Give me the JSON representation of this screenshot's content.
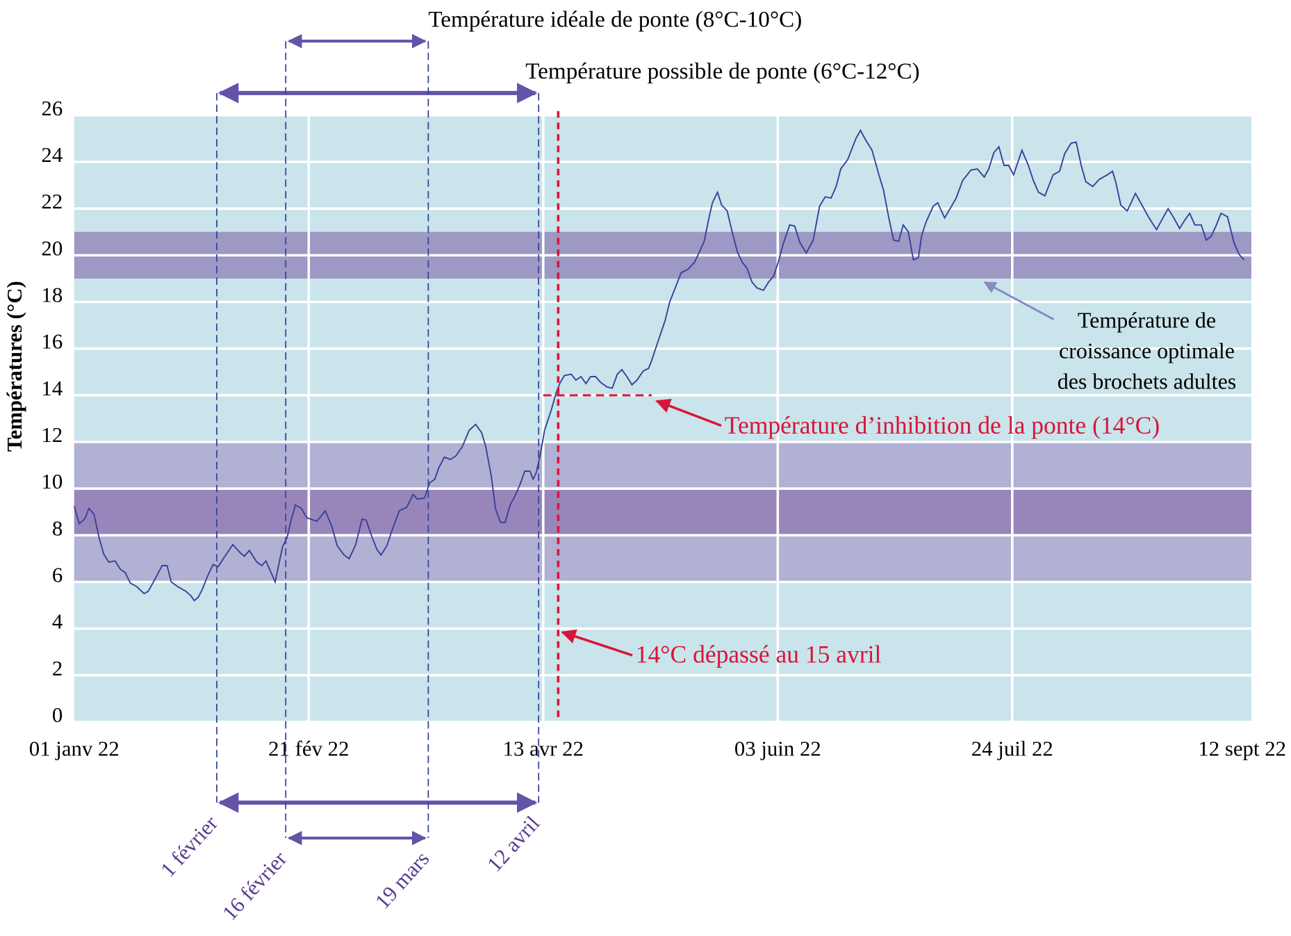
{
  "chart_data": {
    "type": "line",
    "y_label": "Températures (°C)",
    "ylim": [
      0,
      26
    ],
    "yticks": [
      0,
      2,
      4,
      6,
      8,
      10,
      12,
      14,
      16,
      18,
      20,
      22,
      24,
      26
    ],
    "xlim": [
      0,
      256
    ],
    "xticks": [
      {
        "value": 0,
        "label": "01 janv 22"
      },
      {
        "value": 51,
        "label": "21 fév 22"
      },
      {
        "value": 102,
        "label": "13 avr 22"
      },
      {
        "value": 153,
        "label": "03 juin 22"
      },
      {
        "value": 204,
        "label": "24 juil 22"
      },
      {
        "value": 254,
        "label": "12 sept 22"
      }
    ],
    "grid": true,
    "background": "#c9e4ea",
    "x": [
      0,
      1.1,
      2.3,
      3.2,
      4.3,
      5.4,
      6.4,
      7.5,
      8.9,
      10.0,
      11.1,
      12.2,
      13.6,
      15.2,
      16.1,
      17.5,
      19.1,
      20.2,
      21.1,
      22.5,
      24.3,
      25.4,
      26.1,
      27.0,
      27.9,
      29.0,
      30.2,
      31.3,
      32.6,
      34.5,
      36.1,
      37.0,
      38.1,
      39.7,
      40.8,
      41.7,
      43.7,
      45.3,
      46.3,
      47.1,
      48.1,
      49.4,
      50.6,
      52.8,
      54.6,
      56.0,
      57.2,
      58.7,
      59.8,
      61.2,
      62.6,
      63.5,
      64.8,
      65.8,
      66.7,
      68.0,
      69.2,
      70.7,
      72.3,
      73.7,
      74.6,
      76.2,
      77.3,
      78.4,
      79.3,
      80.5,
      81.8,
      83.0,
      84.4,
      85.9,
      87.3,
      88.6,
      89.5,
      90.7,
      91.6,
      92.7,
      93.7,
      94.8,
      95.9,
      97.0,
      98.0,
      99.1,
      99.8,
      100.5,
      101.4,
      102.3,
      103.8,
      104.8,
      105.7,
      106.6,
      108.1,
      109.1,
      110.2,
      111.3,
      112.3,
      113.4,
      114.5,
      115.9,
      117.0,
      118.1,
      119.1,
      120.2,
      121.3,
      122.4,
      123.8,
      124.9,
      125.6,
      126.7,
      128.5,
      129.5,
      131.0,
      132.0,
      133.5,
      134.9,
      136.0,
      137.0,
      138.1,
      138.8,
      139.9,
      140.8,
      142.0,
      143.1,
      144.2,
      145.3,
      146.3,
      147.4,
      148.5,
      149.9,
      151.0,
      152.1,
      153.1,
      154.2,
      155.6,
      156.7,
      157.8,
      159.2,
      160.7,
      162.1,
      163.3,
      164.6,
      165.7,
      166.7,
      168.2,
      170.0,
      171.0,
      172.1,
      173.5,
      175.0,
      176.0,
      177.1,
      178.2,
      179.3,
      180.3,
      181.4,
      182.5,
      183.6,
      184.3,
      185.3,
      186.8,
      187.8,
      189.3,
      190.5,
      191.8,
      193.2,
      195.0,
      196.4,
      197.9,
      198.9,
      200.0,
      201.1,
      202.2,
      203.2,
      204.3,
      206.1,
      207.5,
      208.6,
      209.7,
      211.1,
      212.9,
      214.3,
      215.4,
      216.8,
      217.9,
      219.0,
      220.0,
      221.5,
      222.9,
      224.7,
      225.8,
      226.5,
      227.6,
      229.0,
      230.8,
      232.2,
      233.6,
      234.4,
      235.4,
      236.9,
      237.9,
      239.0,
      240.4,
      241.5,
      242.6,
      243.7,
      245.1,
      246.2,
      247.2,
      248.3,
      249.4,
      250.8,
      252.2,
      253.3,
      254.4
    ],
    "series": [
      {
        "color": "#3a3f98",
        "values": [
          9.25,
          8.5,
          8.7,
          9.15,
          8.9,
          7.9,
          7.2,
          6.85,
          6.9,
          6.55,
          6.4,
          5.95,
          5.8,
          5.5,
          5.6,
          6.1,
          6.7,
          6.7,
          6.0,
          5.8,
          5.6,
          5.4,
          5.2,
          5.35,
          5.7,
          6.25,
          6.75,
          6.65,
          7.05,
          7.6,
          7.25,
          7.1,
          7.35,
          6.85,
          6.7,
          6.9,
          6.0,
          7.5,
          7.9,
          8.6,
          9.3,
          9.15,
          8.75,
          8.6,
          9.05,
          8.4,
          7.55,
          7.15,
          7.0,
          7.6,
          8.7,
          8.65,
          7.9,
          7.4,
          7.15,
          7.55,
          8.25,
          9.05,
          9.2,
          9.75,
          9.55,
          9.6,
          10.25,
          10.4,
          10.9,
          11.35,
          11.25,
          11.4,
          11.8,
          12.5,
          12.75,
          12.4,
          11.8,
          10.55,
          9.15,
          8.55,
          8.55,
          9.3,
          9.7,
          10.2,
          10.75,
          10.75,
          10.4,
          10.7,
          11.5,
          12.5,
          13.4,
          14.1,
          14.55,
          14.85,
          14.9,
          14.65,
          14.8,
          14.5,
          14.8,
          14.8,
          14.55,
          14.35,
          14.3,
          14.9,
          15.1,
          14.8,
          14.45,
          14.65,
          15.05,
          15.15,
          15.5,
          16.15,
          17.2,
          18.0,
          18.75,
          19.25,
          19.4,
          19.7,
          20.15,
          20.6,
          21.65,
          22.25,
          22.7,
          22.15,
          21.9,
          21.0,
          20.15,
          19.7,
          19.45,
          18.85,
          18.6,
          18.5,
          18.85,
          19.1,
          19.7,
          20.5,
          21.3,
          21.25,
          20.55,
          20.1,
          20.65,
          22.1,
          22.5,
          22.45,
          22.95,
          23.7,
          24.1,
          25.0,
          25.35,
          24.95,
          24.5,
          23.45,
          22.8,
          21.65,
          20.65,
          20.6,
          21.3,
          21.0,
          19.8,
          19.9,
          20.85,
          21.45,
          22.1,
          22.25,
          21.6,
          22.0,
          22.45,
          23.2,
          23.65,
          23.7,
          23.35,
          23.7,
          24.4,
          24.65,
          23.85,
          23.85,
          23.45,
          24.5,
          23.85,
          23.2,
          22.7,
          22.55,
          23.45,
          23.6,
          24.35,
          24.8,
          24.85,
          23.85,
          23.15,
          22.95,
          23.25,
          23.45,
          23.6,
          23.15,
          22.15,
          21.9,
          22.65,
          22.15,
          21.65,
          21.4,
          21.1,
          21.65,
          22.0,
          21.65,
          21.15,
          21.5,
          21.8,
          21.3,
          21.3,
          20.65,
          20.8,
          21.25,
          21.8,
          21.65,
          20.55,
          20.05,
          19.8
        ]
      }
    ],
    "bands": [
      {
        "from": 6,
        "to": 12,
        "color": "#b1b1d4"
      },
      {
        "from": 8,
        "to": 10,
        "color": "#9886bb"
      },
      {
        "from": 19,
        "to": 21,
        "color": "#9d98c4",
        "label": [
          "Température de",
          "croissance optimale",
          "des brochets adultes"
        ]
      }
    ],
    "spans": [
      {
        "label": "Température possible de ponte (6°C-12°C)",
        "x": [
          31,
          101
        ],
        "date_labels": [
          "1 février",
          "12 avril"
        ]
      },
      {
        "label": "Température idéale de ponte (8°C-10°C)",
        "x": [
          46,
          77
        ],
        "date_labels": [
          "16 février",
          "19 mars"
        ]
      }
    ],
    "threshold": {
      "value": 14,
      "x": [
        102,
        125.6
      ],
      "label": "Température d’inhibition de la ponte (14°C)",
      "color": "#d9143b"
    },
    "crossing": {
      "x": 104,
      "label": "14°C dépassé au 15 avril",
      "color": "#d9143b"
    }
  }
}
